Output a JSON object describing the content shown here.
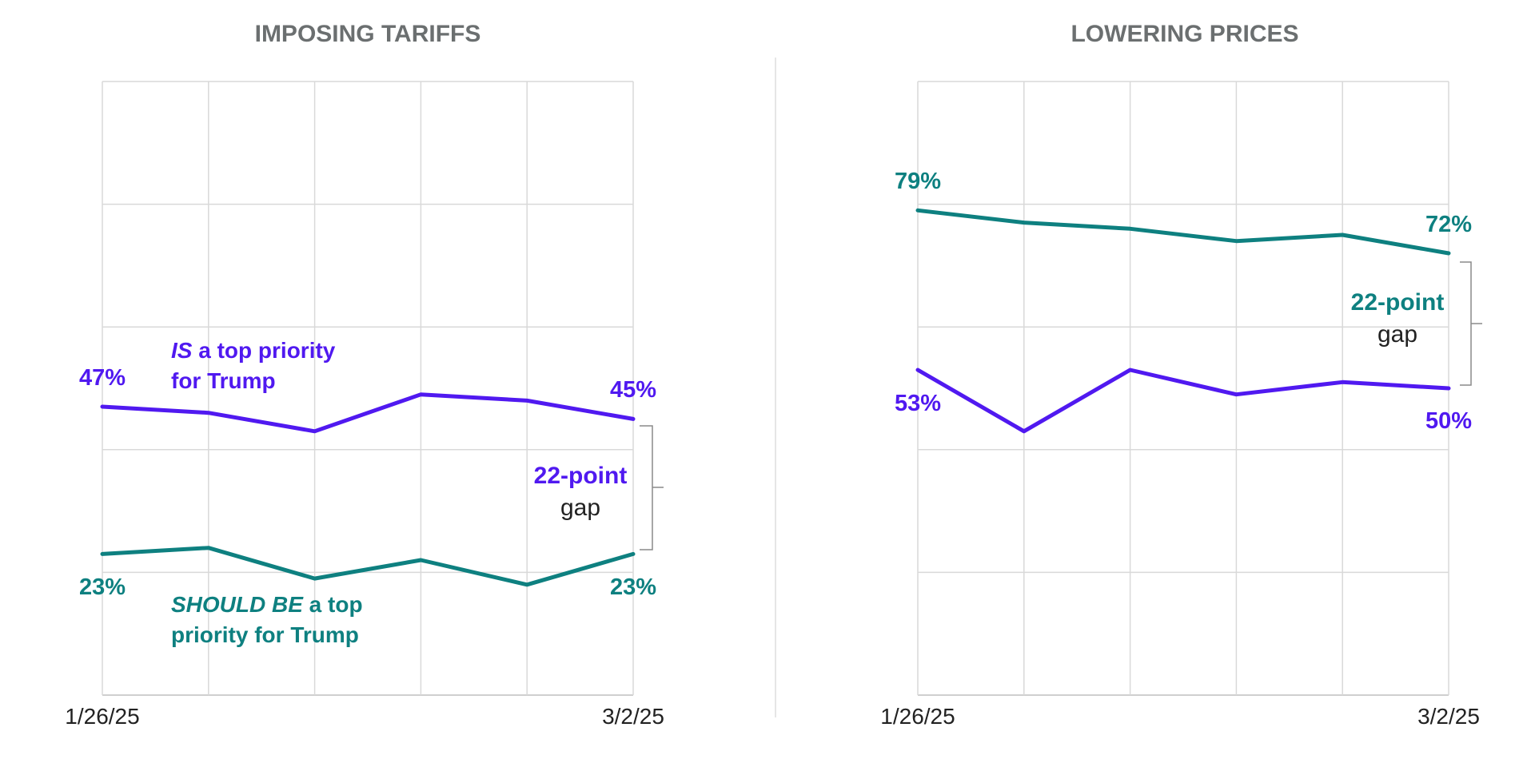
{
  "colors": {
    "is_priority": "#5019f0",
    "should_be_priority": "#0e8080"
  },
  "chart_data": [
    {
      "type": "line",
      "title": "IMPOSING TARIFFS",
      "x_tick_labels": [
        "1/26/25",
        "3/2/25"
      ],
      "x_points": 6,
      "ylim": [
        0,
        100
      ],
      "grid": true,
      "series": [
        {
          "key": "is",
          "values": [
            47,
            46,
            43,
            49,
            48,
            45
          ],
          "start_label": "47%",
          "end_label": "45%"
        },
        {
          "key": "should",
          "values": [
            23,
            24,
            19,
            22,
            18,
            23
          ],
          "start_label": "23%",
          "end_label": "23%"
        }
      ],
      "annotations": {
        "is_label_em": "IS",
        "is_label_rest": " a top priority",
        "is_label_line2": "for Trump",
        "should_label_em": "SHOULD BE",
        "should_label_rest": " a top",
        "should_label_line2": "priority for Trump",
        "gap_bold": "22-point",
        "gap_plain": "gap"
      }
    },
    {
      "type": "line",
      "title": "LOWERING PRICES",
      "x_tick_labels": [
        "1/26/25",
        "3/2/25"
      ],
      "x_points": 6,
      "ylim": [
        0,
        100
      ],
      "grid": true,
      "series": [
        {
          "key": "should",
          "values": [
            79,
            77,
            76,
            74,
            75,
            72
          ],
          "start_label": "79%",
          "end_label": "72%"
        },
        {
          "key": "is",
          "values": [
            53,
            43,
            53,
            49,
            51,
            50
          ],
          "start_label": "53%",
          "end_label": "50%"
        }
      ],
      "annotations": {
        "gap_bold": "22-point",
        "gap_plain": "gap"
      }
    }
  ]
}
